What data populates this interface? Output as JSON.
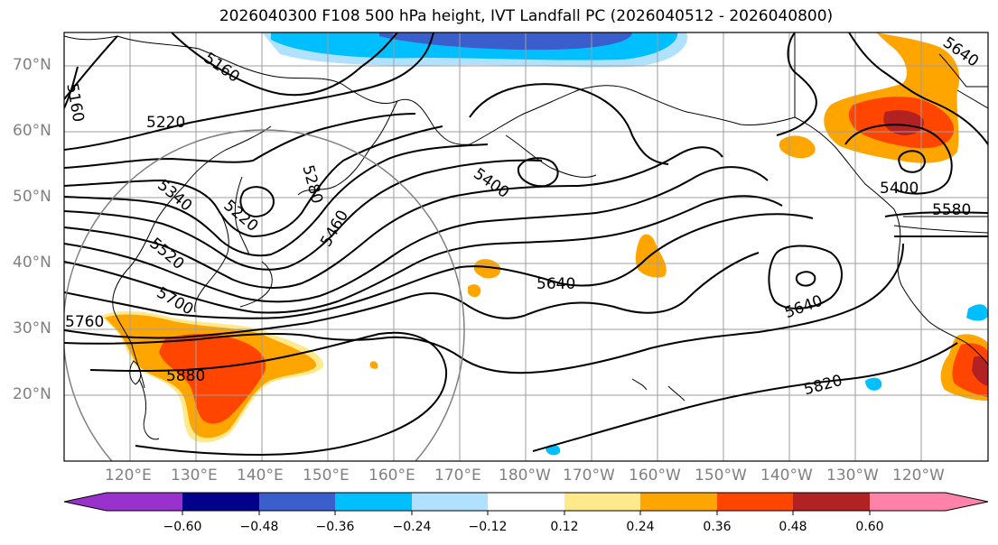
{
  "title": "2026040300 F108 500 hPa height, IVT Landfall PC (2026040512 - 2026040800)",
  "latitude_labels": [
    "70°N",
    "60°N",
    "50°N",
    "40°N",
    "30°N",
    "20°N"
  ],
  "longitude_labels": [
    "120°E",
    "130°E",
    "140°E",
    "150°E",
    "160°E",
    "170°E",
    "180°W",
    "170°W",
    "160°W",
    "150°W",
    "140°W",
    "130°W",
    "120°W"
  ],
  "contour_labels": [
    "5160",
    "5160",
    "5220",
    "5280",
    "5220",
    "5340",
    "5460",
    "5400",
    "5520",
    "5700",
    "5640",
    "5640",
    "5880",
    "5760",
    "5820",
    "5400",
    "5580",
    "5640"
  ],
  "colorbar": {
    "tick_labels": [
      "−0.60",
      "−0.48",
      "−0.36",
      "−0.24",
      "−0.12",
      "0.12",
      "0.24",
      "0.36",
      "0.48",
      "0.60"
    ],
    "colors": [
      "#9932cc",
      "#00008b",
      "#3a5fcd",
      "#00bfff",
      "#b0e2ff",
      "#ffffff",
      "#ffe98b",
      "#ffa500",
      "#ff4500",
      "#b22222",
      "#ff82ab"
    ]
  }
}
